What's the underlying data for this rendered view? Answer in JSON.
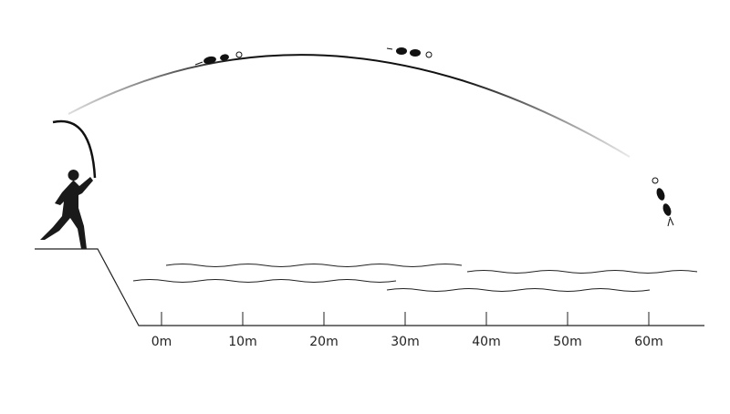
{
  "distance_axis": {
    "ticks": [
      {
        "value": 0,
        "label": "0m"
      },
      {
        "value": 10,
        "label": "10m"
      },
      {
        "value": 20,
        "label": "20m"
      },
      {
        "value": 30,
        "label": "30m"
      },
      {
        "value": 40,
        "label": "40m"
      },
      {
        "value": 50,
        "label": "50m"
      },
      {
        "value": 60,
        "label": "60m"
      }
    ]
  }
}
